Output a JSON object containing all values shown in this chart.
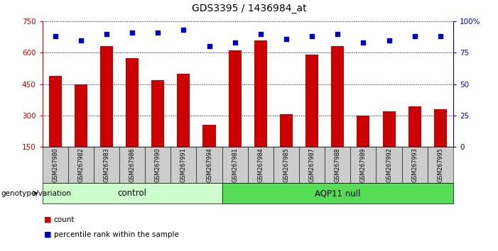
{
  "title": "GDS3395 / 1436984_at",
  "samples": [
    "GSM267980",
    "GSM267982",
    "GSM267983",
    "GSM267986",
    "GSM267990",
    "GSM267991",
    "GSM267994",
    "GSM267981",
    "GSM267984",
    "GSM267985",
    "GSM267987",
    "GSM267988",
    "GSM267989",
    "GSM267992",
    "GSM267993",
    "GSM267995"
  ],
  "counts": [
    490,
    450,
    630,
    575,
    470,
    500,
    255,
    610,
    660,
    305,
    590,
    630,
    298,
    320,
    345,
    330
  ],
  "percentiles": [
    88,
    85,
    90,
    91,
    91,
    93,
    80,
    83,
    90,
    86,
    88,
    90,
    83,
    85,
    88,
    88
  ],
  "control_count": 7,
  "control_label": "control",
  "aqp_label": "AQP11 null",
  "control_color": "#ccffcc",
  "aqp_color": "#55dd55",
  "bar_color": "#cc0000",
  "dot_color": "#0000cc",
  "ymin": 150,
  "ymax": 750,
  "yticks": [
    150,
    300,
    450,
    600,
    750
  ],
  "y2ticks": [
    0,
    25,
    50,
    75,
    100
  ],
  "y2labels": [
    "0",
    "25",
    "50",
    "75",
    "100%"
  ],
  "grid_color": "#000000",
  "cell_bg": "#cccccc",
  "legend_count_label": "count",
  "legend_pct_label": "percentile rank within the sample"
}
